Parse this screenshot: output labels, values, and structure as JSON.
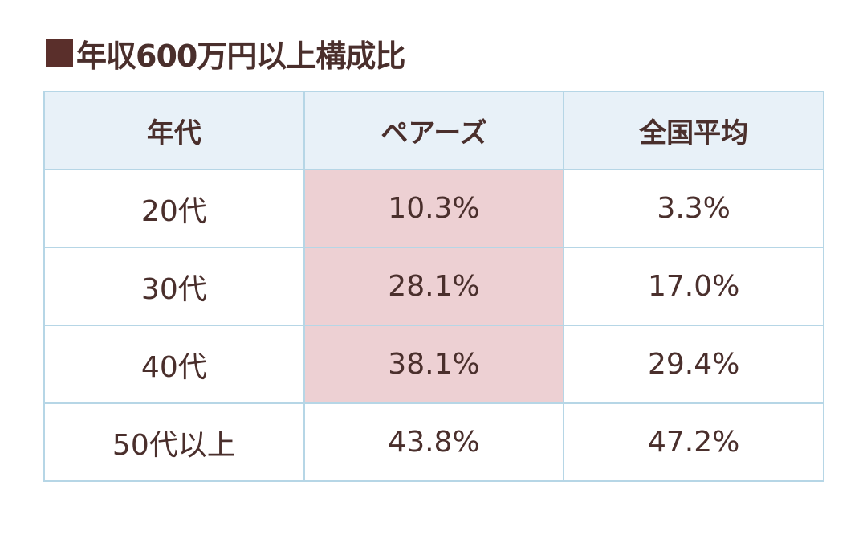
{
  "heading": {
    "title": "年収600万円以上構成比"
  },
  "colors": {
    "heading_square": "#5a2f2b",
    "header_bg": "#e8f1f8",
    "highlight_bg": "#edd0d3",
    "border": "#b6d6e6",
    "text": "#4a2f2c"
  },
  "table": {
    "headers": [
      "年代",
      "ペアーズ",
      "全国平均"
    ],
    "rows": [
      {
        "age": "20代",
        "pairs": "10.3%",
        "national": "3.3%",
        "highlight": true
      },
      {
        "age": "30代",
        "pairs": "28.1%",
        "national": "17.0%",
        "highlight": true
      },
      {
        "age": "40代",
        "pairs": "38.1%",
        "national": "29.4%",
        "highlight": true
      },
      {
        "age": "50代以上",
        "pairs": "43.8%",
        "national": "47.2%",
        "highlight": false
      }
    ]
  }
}
